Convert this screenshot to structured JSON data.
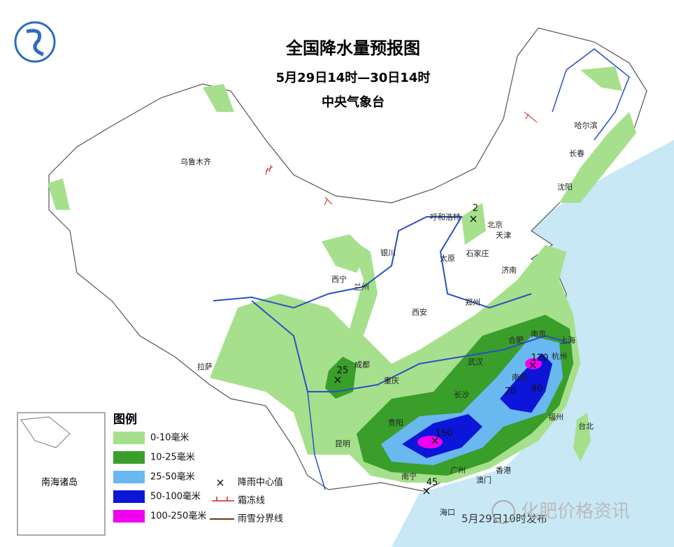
{
  "header": {
    "title": "全国降水量预报图",
    "subtitle": "5月29日14时—30日14时",
    "issuer": "中央气象台"
  },
  "cities": [
    "乌鲁木齐",
    "哈尔滨",
    "长春",
    "沈阳",
    "呼和浩特",
    "北京",
    "天津",
    "石家庄",
    "太原",
    "济南",
    "银川",
    "西宁",
    "兰州",
    "西安",
    "郑州",
    "拉萨",
    "成都",
    "重庆",
    "武汉",
    "合肥",
    "南京",
    "上海",
    "杭州",
    "南昌",
    "长沙",
    "福州",
    "台北",
    "贵阳",
    "昆明",
    "南宁",
    "广州",
    "香港",
    "澳门",
    "海口"
  ],
  "rain_centers": [
    2,
    25,
    120,
    70,
    90,
    150,
    45
  ],
  "legend": {
    "title": "图例",
    "items": [
      {
        "label": "0-10毫米",
        "color": "#a6e08c"
      },
      {
        "label": "10-25毫米",
        "color": "#3a9e2a"
      },
      {
        "label": "25-50毫米",
        "color": "#6ab8f0"
      },
      {
        "label": "50-100毫米",
        "color": "#0b16d8"
      },
      {
        "label": "100-250毫米",
        "color": "#f000f0"
      }
    ],
    "symbols": [
      "降雨中心值",
      "霜冻线",
      "雨雪分界线"
    ]
  },
  "inset_label": "南海诸岛",
  "issued": "5月29日10时发布",
  "watermark": "化肥价格资讯"
}
